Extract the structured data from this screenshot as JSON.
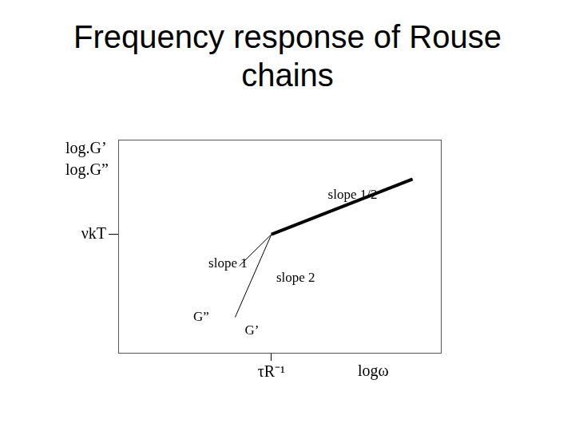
{
  "chart_data": {
    "type": "line",
    "title": "Frequency response of Rouse chains",
    "ylabel": [
      "log.G’",
      "log.G”"
    ],
    "xlabel": "logω",
    "xlim": [
      -3.8,
      4.2
    ],
    "ylim": [
      -3.0,
      2.4
    ],
    "xticks": [
      {
        "value": 0,
        "label": "τR⁻¹"
      }
    ],
    "yticks": [
      {
        "value": 0,
        "label": "νkT"
      }
    ],
    "grid": false,
    "series": [
      {
        "name": "G”",
        "color": "#000000",
        "line_style": "solid",
        "x": [
          -0.8,
          0
        ],
        "values": [
          -0.8,
          0
        ]
      },
      {
        "name": "G’",
        "color": "#000000",
        "line_style": "solid",
        "x": [
          -0.9,
          0
        ],
        "values": [
          -2.1,
          0
        ]
      },
      {
        "color": "#000000",
        "line_style": "bold",
        "x": [
          0,
          3.5
        ],
        "values": [
          0,
          1.4
        ]
      }
    ],
    "annotations": [
      {
        "text": "slope 1/2",
        "x": 1.4,
        "y": 1.0
      },
      {
        "text": "slope 1",
        "x": -1.56,
        "y": -0.74
      },
      {
        "text": "slope 2",
        "x": 0.12,
        "y": -1.1
      },
      {
        "text": "G”",
        "x": -1.94,
        "y": -2.1
      },
      {
        "text": "G’",
        "x": -0.66,
        "y": -2.44
      }
    ]
  }
}
